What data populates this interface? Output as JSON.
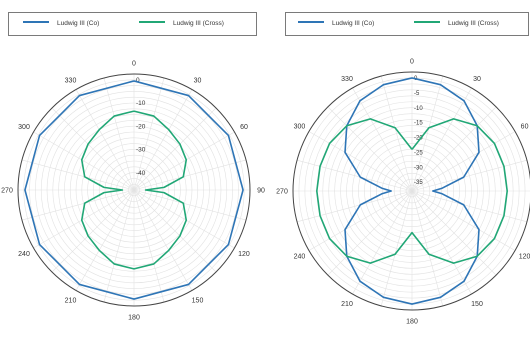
{
  "chart_data": [
    {
      "type": "line",
      "coordinate_system": "polar",
      "angle_direction": "clockwise",
      "zero_angle": "top",
      "angle_ticks": [
        0,
        30,
        60,
        90,
        120,
        150,
        180,
        210,
        240,
        270,
        300,
        330
      ],
      "r_ticks": [
        0,
        -10,
        -20,
        -30,
        -40
      ],
      "r_range": [
        -50,
        0
      ],
      "grid": true,
      "legend_position": "top",
      "series": [
        {
          "name": "Ludwig III (Co)",
          "color": "#2e75b6",
          "theta": [
            0,
            30,
            60,
            90,
            120,
            150,
            180,
            210,
            240,
            270,
            300,
            330,
            360
          ],
          "r": [
            -3,
            -3,
            -3,
            -3,
            -3,
            -3,
            -3,
            -3,
            -3,
            -3,
            -3,
            -3,
            -3
          ]
        },
        {
          "name": "Ludwig III (Cross)",
          "color": "#21a776",
          "theta": [
            0,
            15,
            30,
            45,
            60,
            75,
            85,
            90,
            95,
            105,
            120,
            135,
            150,
            165,
            180,
            195,
            210,
            225,
            240,
            255,
            265,
            270,
            275,
            285,
            300,
            315,
            330,
            345,
            360
          ],
          "r": [
            -16,
            -17,
            -20,
            -22,
            -24,
            -28,
            -37,
            -45,
            -37,
            -28,
            -24,
            -22,
            -20,
            -17,
            -16,
            -17,
            -20,
            -22,
            -24,
            -28,
            -37,
            -45,
            -37,
            -28,
            -24,
            -22,
            -20,
            -17,
            -16
          ]
        }
      ]
    },
    {
      "type": "line",
      "coordinate_system": "polar",
      "angle_direction": "clockwise",
      "zero_angle": "top",
      "angle_ticks": [
        0,
        30,
        60,
        90,
        120,
        150,
        180,
        210,
        240,
        270,
        300,
        330
      ],
      "r_ticks": [
        0,
        -5,
        -10,
        -15,
        -20,
        -25,
        -30,
        -35
      ],
      "r_range": [
        -40,
        0
      ],
      "grid": true,
      "legend_position": "top",
      "series": [
        {
          "name": "Ludwig III (Co)",
          "color": "#2e75b6",
          "theta": [
            0,
            15,
            30,
            45,
            60,
            75,
            85,
            90,
            95,
            105,
            120,
            135,
            150,
            165,
            180,
            195,
            210,
            225,
            240,
            255,
            265,
            270,
            275,
            285,
            300,
            315,
            330,
            345,
            360
          ],
          "r": [
            -2,
            -3,
            -5,
            -9,
            -14,
            -22,
            -30,
            -33,
            -30,
            -22,
            -14,
            -9,
            -5,
            -3,
            -2,
            -3,
            -5,
            -9,
            -14,
            -22,
            -30,
            -33,
            -30,
            -22,
            -14,
            -9,
            -5,
            -3,
            -2
          ]
        },
        {
          "name": "Ludwig III (Cross)",
          "color": "#21a776",
          "theta": [
            0,
            15,
            30,
            45,
            60,
            75,
            90,
            105,
            120,
            135,
            150,
            165,
            180,
            195,
            210,
            225,
            240,
            255,
            270,
            285,
            300,
            315,
            330,
            345,
            360
          ],
          "r": [
            -26,
            -18,
            -12,
            -9,
            -8,
            -8,
            -8,
            -8,
            -8,
            -9,
            -12,
            -18,
            -26,
            -18,
            -12,
            -9,
            -8,
            -8,
            -8,
            -8,
            -8,
            -9,
            -12,
            -18,
            -26
          ]
        }
      ]
    }
  ]
}
